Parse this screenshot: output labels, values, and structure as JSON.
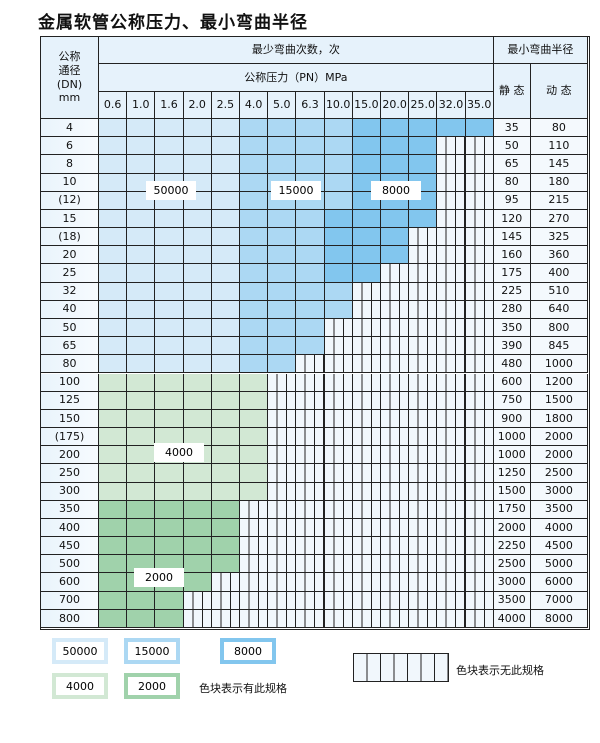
{
  "title": "金属软管公称压力、最小弯曲半径",
  "header": {
    "dn_label": "公称\n通径\n(DN)\nmm",
    "cycles_label": "最少弯曲次数，次",
    "pressure_label": "公称压力（PN）MPa",
    "radius_label": "最小弯曲半径",
    "static_label": "静 态",
    "dynamic_label": "动 态",
    "pressures": [
      "0.6",
      "1.0",
      "1.6",
      "2.0",
      "2.5",
      "4.0",
      "5.0",
      "6.3",
      "10.0",
      "15.0",
      "20.0",
      "25.0",
      "32.0",
      "35.0"
    ]
  },
  "colors": {
    "L": "#d5eaf8",
    "M": "#acd8f3",
    "D": "#82c6ee",
    "G": "#d2e8d4",
    "g": "#a0d2ab"
  },
  "cycle_codes": {
    "L": "50000",
    "M": "15000",
    "D": "8000",
    "G": "4000",
    "g": "2000"
  },
  "rows": [
    {
      "dn": "4",
      "static": "35",
      "dynamic": "80",
      "cells": "LLLLLMMMMDDDDD"
    },
    {
      "dn": "6",
      "static": "50",
      "dynamic": "110",
      "cells": "LLLLLMMMMDDD__"
    },
    {
      "dn": "8",
      "static": "65",
      "dynamic": "145",
      "cells": "LLLLLMMMMDDD__"
    },
    {
      "dn": "10",
      "static": "80",
      "dynamic": "180",
      "cells": "LLLLLMMMMDDD__"
    },
    {
      "dn": "(12)",
      "static": "95",
      "dynamic": "215",
      "cells": "LLLLLMMMMDDD__"
    },
    {
      "dn": "15",
      "static": "120",
      "dynamic": "270",
      "cells": "LLLLLMMMDDDD__"
    },
    {
      "dn": "(18)",
      "static": "145",
      "dynamic": "325",
      "cells": "LLLLLMMMDDD___"
    },
    {
      "dn": "20",
      "static": "160",
      "dynamic": "360",
      "cells": "LLLLLMMMDDD___"
    },
    {
      "dn": "25",
      "static": "175",
      "dynamic": "400",
      "cells": "LLLLLMMMDD____"
    },
    {
      "dn": "32",
      "static": "225",
      "dynamic": "510",
      "cells": "LLLLLMMMM_____"
    },
    {
      "dn": "40",
      "static": "280",
      "dynamic": "640",
      "cells": "LLLLLMMMM_____"
    },
    {
      "dn": "50",
      "static": "350",
      "dynamic": "800",
      "cells": "LLLLLMMM______"
    },
    {
      "dn": "65",
      "static": "390",
      "dynamic": "845",
      "cells": "LLLLLMMM______"
    },
    {
      "dn": "80",
      "static": "480",
      "dynamic": "1000",
      "cells": "LLLLLMM_______"
    },
    {
      "dn": "100",
      "static": "600",
      "dynamic": "1200",
      "cells": "GGGGGG________"
    },
    {
      "dn": "125",
      "static": "750",
      "dynamic": "1500",
      "cells": "GGGGGG________"
    },
    {
      "dn": "150",
      "static": "900",
      "dynamic": "1800",
      "cells": "GGGGGG________"
    },
    {
      "dn": "(175)",
      "static": "1000",
      "dynamic": "2000",
      "cells": "GGGGGG________"
    },
    {
      "dn": "200",
      "static": "1000",
      "dynamic": "2000",
      "cells": "GGGGGG________"
    },
    {
      "dn": "250",
      "static": "1250",
      "dynamic": "2500",
      "cells": "GGGGGG________"
    },
    {
      "dn": "300",
      "static": "1500",
      "dynamic": "3000",
      "cells": "GGGGGG________"
    },
    {
      "dn": "350",
      "static": "1750",
      "dynamic": "3500",
      "cells": "ggggg_________"
    },
    {
      "dn": "400",
      "static": "2000",
      "dynamic": "4000",
      "cells": "ggggg_________"
    },
    {
      "dn": "450",
      "static": "2250",
      "dynamic": "4500",
      "cells": "ggggg_________"
    },
    {
      "dn": "500",
      "static": "2500",
      "dynamic": "5000",
      "cells": "ggggg_________"
    },
    {
      "dn": "600",
      "static": "3000",
      "dynamic": "6000",
      "cells": "gggg__________"
    },
    {
      "dn": "700",
      "static": "3500",
      "dynamic": "7000",
      "cells": "ggg___________"
    },
    {
      "dn": "800",
      "static": "4000",
      "dynamic": "8000",
      "cells": "ggg___________"
    }
  ],
  "region_labels": {
    "L": "50000",
    "M": "15000",
    "D": "8000",
    "G": "4000",
    "g": "2000"
  },
  "legend": {
    "items": [
      {
        "code": "L",
        "label": "50000"
      },
      {
        "code": "M",
        "label": "15000"
      },
      {
        "code": "D",
        "label": "8000"
      },
      {
        "code": "G",
        "label": "4000"
      },
      {
        "code": "g",
        "label": "2000"
      }
    ],
    "has_spec_note": "色块表示有此规格",
    "no_spec_note": "色块表示无此规格"
  }
}
